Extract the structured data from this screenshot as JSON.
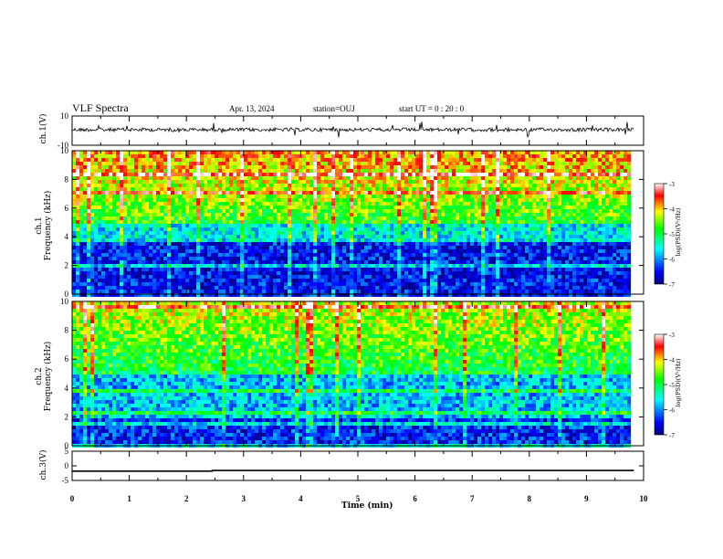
{
  "header": {
    "title": "VLF Spectra",
    "date": "Apr. 13, 2024",
    "station": "station=OUJ",
    "start_ut": "start  UT =   0  : 20 : 0"
  },
  "chart_data": [
    {
      "type": "line",
      "panel": "ch1-waveform",
      "ylabel": "ch.1(V)",
      "yticks": [
        "10",
        "-10"
      ],
      "ylim": [
        -10,
        10
      ],
      "x_range_min": [
        0,
        9.83
      ],
      "approx_level": 0,
      "description_of_signal": "noisy waveform around 0 V with spikes"
    },
    {
      "type": "heatmap",
      "panel": "ch1-spectrogram",
      "ylabel_top": "ch.1",
      "ylabel": "Frequency  (kHz)",
      "yticks": [
        "0",
        "2",
        "4",
        "6",
        "8",
        "10"
      ],
      "ylim": [
        0,
        10
      ],
      "xlim": [
        0,
        10
      ],
      "colorbar": {
        "label": "log(PSD)(V²/Hz)",
        "ticks": [
          "-3",
          "-4",
          "-5",
          "-6",
          "-7"
        ],
        "range": [
          -7,
          -3
        ]
      }
    },
    {
      "type": "heatmap",
      "panel": "ch2-spectrogram",
      "ylabel_top": "ch.2",
      "ylabel": "Frequency  (kHz)",
      "yticks": [
        "0",
        "2",
        "4",
        "6",
        "8",
        "10"
      ],
      "ylim": [
        0,
        10
      ],
      "xlim": [
        0,
        10
      ],
      "colorbar": {
        "label": "log(PSD)(V²/Hz)",
        "ticks": [
          "-3",
          "-4",
          "-5",
          "-6",
          "-7"
        ],
        "range": [
          -7,
          -3
        ]
      }
    },
    {
      "type": "line",
      "panel": "ch3-waveform",
      "ylabel": "ch.3(V)",
      "yticks": [
        "5",
        "0",
        "-5"
      ],
      "ylim": [
        -5,
        5
      ],
      "x": [
        0,
        2.45,
        2.45,
        9.83
      ],
      "y": [
        -1.8,
        -1.8,
        -1.6,
        -1.6
      ]
    }
  ],
  "x_axis": {
    "label": "Time  (min)",
    "ticks": [
      "0",
      "1",
      "2",
      "3",
      "4",
      "5",
      "6",
      "7",
      "8",
      "9",
      "10"
    ]
  }
}
